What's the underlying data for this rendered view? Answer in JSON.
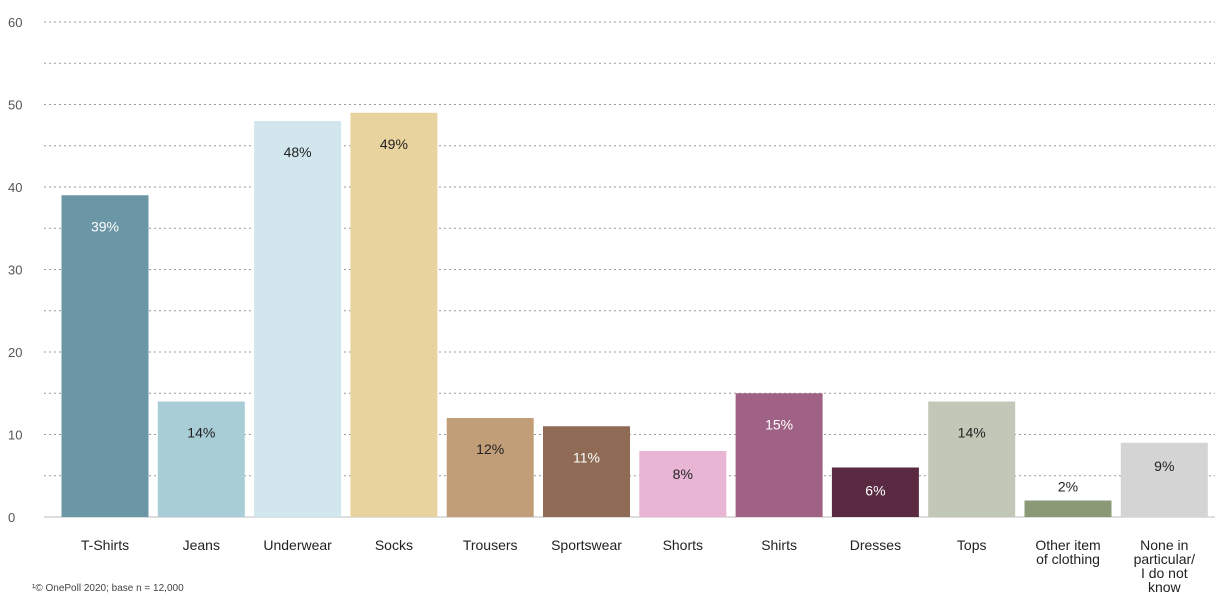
{
  "chart_data": {
    "type": "bar",
    "categories": [
      "T-Shirts",
      "Jeans",
      "Underwear",
      "Socks",
      "Trousers",
      "Sportswear",
      "Shorts",
      "Shirts",
      "Dresses",
      "Tops",
      "Other item\nof clothing",
      "None in\nparticular/\nI do not\nknow"
    ],
    "values": [
      39,
      14,
      48,
      49,
      12,
      11,
      8,
      15,
      6,
      14,
      2,
      9
    ],
    "data_labels": [
      "39%",
      "14%",
      "48%",
      "49%",
      "12%",
      "11%",
      "8%",
      "15%",
      "6%",
      "14%",
      "2%",
      "9%"
    ],
    "colors": [
      "#6a96a6",
      "#a9cdd7",
      "#d2e6ed",
      "#e8d29e",
      "#c19e78",
      "#8f6b55",
      "#e8b6d4",
      "#a06284",
      "#5a2942",
      "#c2c8b7",
      "#8a9a76",
      "#d4d4d4"
    ],
    "label_colors": [
      "#ffffff",
      "#222222",
      "#222222",
      "#222222",
      "#222222",
      "#ffffff",
      "#222222",
      "#ffffff",
      "#ffffff",
      "#222222",
      "#222222",
      "#222222"
    ],
    "ylim": [
      0,
      60
    ],
    "yticks": [
      0,
      10,
      20,
      30,
      40,
      50,
      60
    ],
    "grid": true,
    "grid_style": "dotted",
    "title": "",
    "xlabel": "",
    "ylabel": ""
  },
  "footnote": "¹© OnePoll 2020; base n = 12,000"
}
